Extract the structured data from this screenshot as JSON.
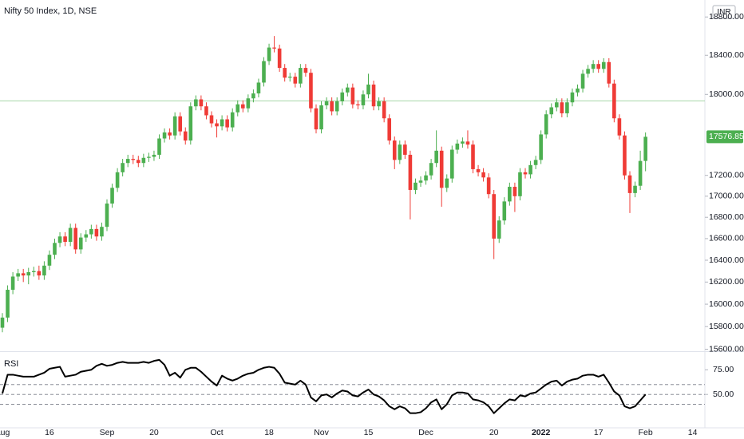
{
  "chart_data": {
    "type": "candlestick",
    "title": "Nifty 50 Index, 1D, NSE",
    "currency": "INR",
    "log_scale": true,
    "grid": false,
    "up_color": "#4caf50",
    "down_color": "#ef3b36",
    "categories": [
      "Aug",
      null,
      null,
      null,
      null,
      null,
      null,
      null,
      null,
      "16",
      null,
      null,
      null,
      null,
      null,
      null,
      null,
      null,
      null,
      null,
      "Sep",
      null,
      null,
      null,
      null,
      null,
      null,
      null,
      null,
      "20",
      null,
      null,
      null,
      null,
      null,
      null,
      null,
      null,
      null,
      null,
      null,
      "Oct",
      null,
      null,
      null,
      null,
      null,
      null,
      null,
      null,
      null,
      "18",
      null,
      null,
      null,
      null,
      null,
      null,
      null,
      null,
      null,
      "Nov",
      null,
      null,
      null,
      null,
      null,
      null,
      null,
      null,
      "15",
      null,
      null,
      null,
      null,
      null,
      null,
      null,
      null,
      null,
      null,
      "Dec",
      null,
      null,
      null,
      null,
      null,
      null,
      null,
      null,
      null,
      null,
      null,
      null,
      "20",
      null,
      null,
      null,
      null,
      null,
      null,
      null,
      null,
      "2022",
      null,
      null,
      null,
      null,
      null,
      null,
      null,
      null,
      null,
      null,
      "17",
      null,
      null,
      null,
      null,
      null,
      null,
      null,
      null,
      "Feb",
      null,
      null,
      null,
      null,
      null,
      null,
      null,
      null,
      "14"
    ],
    "open": [
      15790,
      15880,
      16130,
      16250,
      16280,
      16260,
      16290,
      16300,
      16260,
      16350,
      16450,
      16560,
      16620,
      16570,
      16700,
      16500,
      16610,
      16640,
      16690,
      16620,
      16710,
      16930,
      17080,
      17230,
      17320,
      17360,
      17350,
      17320,
      17370,
      17380,
      17400,
      17560,
      17620,
      17590,
      17780,
      17630,
      17540,
      17880,
      17950,
      17880,
      17790,
      17710,
      17680,
      17750,
      17670,
      17820,
      17900,
      17860,
      17960,
      18010,
      18120,
      18340,
      18480,
      18470,
      18270,
      18170,
      18180,
      18110,
      18270,
      18220,
      17860,
      17650,
      17890,
      17930,
      17830,
      17930,
      18020,
      18070,
      17900,
      17890,
      18000,
      18100,
      17880,
      17930,
      17760,
      17540,
      17350,
      17500,
      17400,
      17060,
      17130,
      17150,
      17200,
      17320,
      17440,
      17080,
      17170,
      17450,
      17510,
      17530,
      17500,
      17260,
      17230,
      17180,
      17020,
      16600,
      16770,
      16950,
      17090,
      17000,
      17230,
      17210,
      17300,
      17350,
      17600,
      17800,
      17870,
      17920,
      17810,
      17920,
      18020,
      18060,
      18210,
      18260,
      18310,
      18260,
      18330,
      18110,
      17760,
      17590,
      17200,
      17030,
      17100,
      17340,
      null,
      null,
      null,
      null,
      null,
      null,
      null,
      null,
      null
    ],
    "high": [
      15920,
      16170,
      16290,
      16320,
      16320,
      16330,
      16340,
      16350,
      16390,
      16490,
      16600,
      16660,
      16660,
      16740,
      16740,
      16650,
      16680,
      16730,
      16730,
      16750,
      16970,
      17120,
      17270,
      17360,
      17400,
      17400,
      17390,
      17410,
      17420,
      17440,
      17600,
      17660,
      17660,
      17820,
      17820,
      17670,
      17920,
      17990,
      17990,
      17920,
      17830,
      17750,
      17790,
      17790,
      17860,
      17940,
      17940,
      18000,
      18050,
      18160,
      18380,
      18520,
      18600,
      18510,
      18310,
      18220,
      18220,
      18310,
      18310,
      18260,
      17900,
      17930,
      17970,
      17970,
      17970,
      18060,
      18110,
      18110,
      17940,
      18040,
      18210,
      18140,
      17970,
      17970,
      17800,
      17580,
      17540,
      17540,
      17440,
      17170,
      17190,
      17240,
      17360,
      17640,
      17480,
      17210,
      17490,
      17550,
      17570,
      17640,
      17540,
      17300,
      17270,
      17220,
      17060,
      16810,
      16990,
      17130,
      17130,
      17270,
      17270,
      17340,
      17390,
      17640,
      17840,
      17910,
      17960,
      17960,
      17960,
      18060,
      18100,
      18250,
      18300,
      18350,
      18350,
      18370,
      18370,
      18150,
      17800,
      17630,
      17240,
      17140,
      17440,
      17620,
      null,
      null,
      null,
      null,
      null,
      null,
      null,
      null,
      null
    ],
    "low": [
      15750,
      15840,
      16090,
      16210,
      16200,
      16180,
      16250,
      16220,
      16220,
      16310,
      16410,
      16520,
      16530,
      16530,
      16460,
      16460,
      16570,
      16600,
      16580,
      16580,
      16670,
      16890,
      17040,
      17190,
      17280,
      17310,
      17280,
      17280,
      17330,
      17340,
      17360,
      17520,
      17550,
      17550,
      17590,
      17500,
      17500,
      17840,
      17840,
      17750,
      17670,
      17570,
      17640,
      17630,
      17630,
      17780,
      17820,
      17820,
      17920,
      17970,
      18080,
      18300,
      18430,
      18230,
      18130,
      18130,
      18070,
      18070,
      18180,
      17820,
      17610,
      17610,
      17850,
      17790,
      17790,
      17890,
      17980,
      17860,
      17850,
      17850,
      17960,
      17840,
      17840,
      17720,
      17500,
      17260,
      17310,
      17360,
      16780,
      17020,
      17090,
      17110,
      17160,
      17280,
      16900,
      17040,
      17130,
      17410,
      17470,
      17460,
      17220,
      17190,
      17140,
      16980,
      16410,
      16560,
      16730,
      16910,
      16850,
      16960,
      17170,
      17170,
      17260,
      17310,
      17560,
      17760,
      17830,
      17770,
      17770,
      17880,
      17980,
      18020,
      18170,
      18220,
      18220,
      18220,
      18070,
      17720,
      17550,
      17160,
      16840,
      16990,
      17060,
      17240,
      null,
      null,
      null,
      null,
      null,
      null,
      null,
      null,
      null
    ],
    "close": [
      15880,
      16130,
      16250,
      16280,
      16260,
      16290,
      16300,
      16260,
      16350,
      16450,
      16560,
      16620,
      16570,
      16700,
      16500,
      16610,
      16640,
      16690,
      16620,
      16710,
      16930,
      17080,
      17230,
      17320,
      17360,
      17350,
      17320,
      17370,
      17380,
      17400,
      17560,
      17620,
      17590,
      17780,
      17630,
      17540,
      17880,
      17950,
      17880,
      17790,
      17710,
      17680,
      17750,
      17670,
      17820,
      17900,
      17860,
      17960,
      18010,
      18120,
      18340,
      18480,
      18470,
      18270,
      18170,
      18180,
      18110,
      18270,
      18220,
      17860,
      17650,
      17890,
      17930,
      17830,
      17930,
      18020,
      18070,
      17900,
      17890,
      18000,
      18100,
      17880,
      17930,
      17760,
      17540,
      17350,
      17500,
      17400,
      17060,
      17130,
      17150,
      17200,
      17320,
      17440,
      17080,
      17170,
      17450,
      17510,
      17530,
      17500,
      17260,
      17230,
      17180,
      17020,
      16600,
      16770,
      16950,
      17090,
      17000,
      17230,
      17210,
      17300,
      17350,
      17600,
      17800,
      17870,
      17920,
      17810,
      17920,
      18020,
      18060,
      18210,
      18260,
      18310,
      18260,
      18330,
      18110,
      17760,
      17590,
      17200,
      17030,
      17100,
      17340,
      17576.85,
      null,
      null,
      null,
      null,
      null,
      null,
      null,
      null,
      null
    ],
    "ylim": [
      15583,
      18980
    ],
    "yticks": [
      {
        "value": 18800,
        "label": "18800.00"
      },
      {
        "value": 18400,
        "label": "18400.00"
      },
      {
        "value": 18000,
        "label": "18000.00"
      },
      {
        "value": 17200,
        "label": "17200.00"
      },
      {
        "value": 17000,
        "label": "17000.00"
      },
      {
        "value": 16800,
        "label": "16800.00"
      },
      {
        "value": 16600,
        "label": "16600.00"
      },
      {
        "value": 16400,
        "label": "16400.00"
      },
      {
        "value": 16200,
        "label": "16200.00"
      },
      {
        "value": 16000,
        "label": "16000.00"
      },
      {
        "value": 15800,
        "label": "15800.00"
      },
      {
        "value": 15600,
        "label": "15600.00"
      }
    ],
    "price_line": {
      "value": 17935,
      "color": "#a5d6a7"
    },
    "last_price_color": "#4caf50",
    "indicator": {
      "name": "RSI",
      "color": "#000000",
      "values": [
        51,
        70,
        70,
        69,
        68,
        68,
        68,
        70,
        72,
        76,
        77,
        78,
        68,
        69,
        70,
        73,
        74,
        75,
        79,
        81,
        79,
        80,
        82,
        83,
        82,
        82,
        82,
        83,
        82,
        84,
        85,
        80,
        69,
        72,
        67,
        75,
        77,
        77,
        73,
        68,
        63,
        59,
        69,
        66,
        64,
        66,
        69,
        71,
        72,
        75,
        77,
        78,
        77,
        71,
        62,
        61,
        60,
        64,
        60,
        47,
        43,
        49,
        50,
        47,
        51,
        54,
        53,
        49,
        48,
        52,
        55,
        50,
        48,
        44,
        38,
        35,
        38,
        36,
        31,
        31,
        32,
        36,
        42,
        45,
        35,
        40,
        49,
        52,
        52,
        51,
        45,
        44,
        42,
        38,
        31,
        36,
        41,
        45,
        44,
        49,
        48,
        51,
        52,
        56,
        60,
        63,
        64,
        59,
        63,
        65,
        66,
        69,
        70,
        70,
        68,
        70,
        62,
        53,
        49,
        38,
        36,
        38,
        44,
        50,
        null,
        null,
        null,
        null,
        null,
        null,
        null,
        null,
        null
      ],
      "ylim": [
        17,
        93
      ],
      "yticks": [
        {
          "value": 75,
          "label": "75.00"
        },
        {
          "value": 50,
          "label": "50.00"
        }
      ],
      "levels": [
        60,
        50,
        40
      ]
    }
  }
}
